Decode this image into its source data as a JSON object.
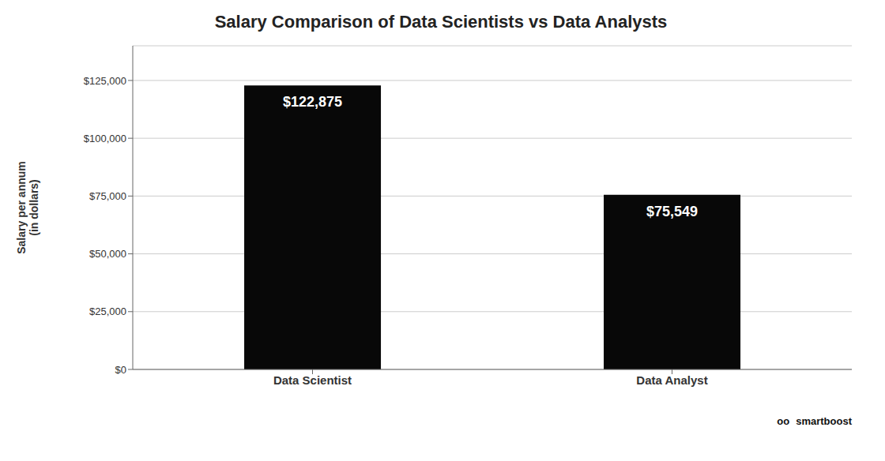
{
  "chart_data": {
    "type": "bar",
    "title": "Salary Comparison of Data Scientists vs Data Analysts",
    "y_label": "Salary per annum\n(in dollars)",
    "categories": [
      "Data Scientist",
      "Data Analyst"
    ],
    "values": [
      122875,
      75549
    ],
    "value_labels": [
      "$122,875",
      "$75,549"
    ],
    "data_labels": true,
    "color": "#080808",
    "ylim": [
      0,
      140000
    ],
    "yticks": [
      {
        "value": 0,
        "label": "$0"
      },
      {
        "value": 25000,
        "label": "$25,000"
      },
      {
        "value": 50000,
        "label": "$50,000"
      },
      {
        "value": 75000,
        "label": "$75,000"
      },
      {
        "value": 100000,
        "label": "$100,000"
      },
      {
        "value": 125000,
        "label": "$125,000"
      }
    ],
    "grid": true,
    "annotations": [
      "oo",
      "smartboost"
    ]
  }
}
